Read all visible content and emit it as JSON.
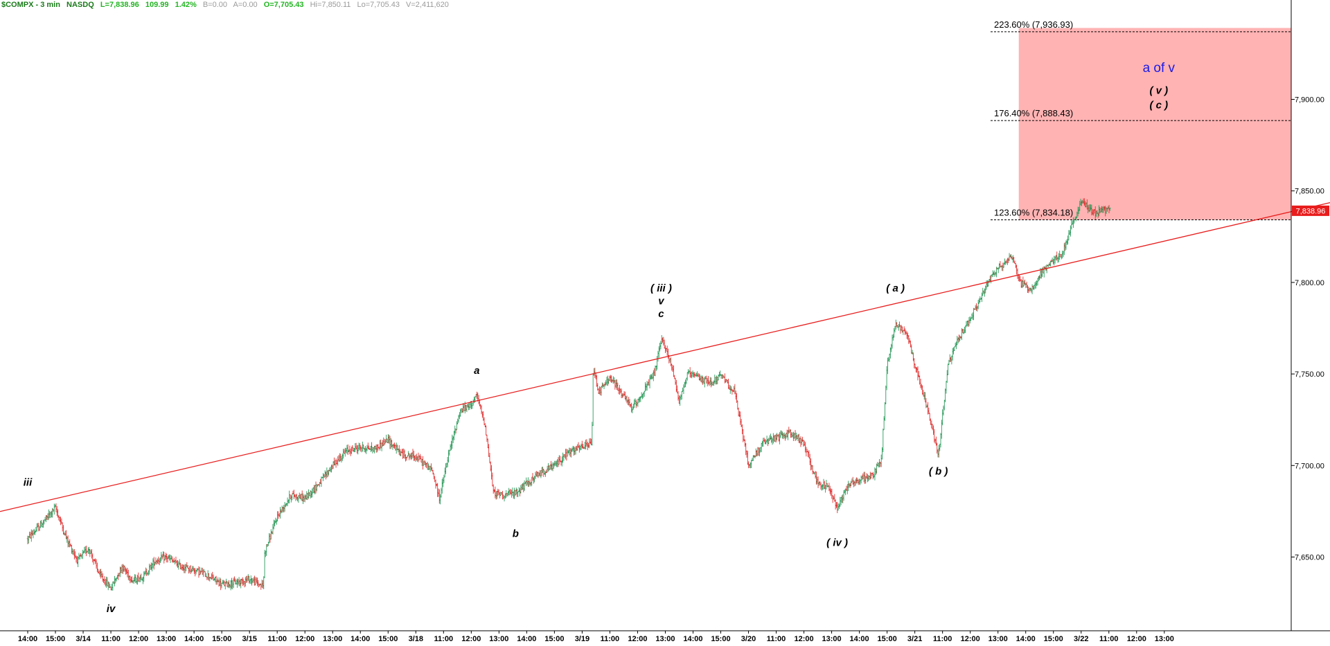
{
  "header": {
    "symbol": "$COMPX - 3 min",
    "exchange": "NASDQ",
    "last": "L=7,838.96",
    "change": "109.99",
    "change_pct": "1.42%",
    "bid": "B=0.00",
    "ask": "A=0.00",
    "open": "O=7,705.43",
    "high": "Hi=7,850.11",
    "low": "Lo=7,705.43",
    "volume": "V=2,411,620"
  },
  "colors": {
    "up_candle": "#2a9a5a",
    "down_candle": "#e03030",
    "trendline": "#e81c1c",
    "target_zone": "#ffb3b3",
    "price_tag": "#e81c1c",
    "wave_label_blue": "#1a1ae8",
    "axis": "#000000"
  },
  "chart_data": {
    "type": "candlestick",
    "title": "",
    "ylim": [
      7610,
      7945
    ],
    "y_ticks": [
      "7,650.00",
      "7,700.00",
      "7,750.00",
      "7,800.00",
      "7,850.00",
      "7,900.00"
    ],
    "y_tick_values": [
      7650,
      7700,
      7750,
      7800,
      7850,
      7900
    ],
    "x_ticks": [
      "14:00",
      "15:00",
      "3/14",
      "11:00",
      "12:00",
      "13:00",
      "14:00",
      "15:00",
      "3/15",
      "11:00",
      "12:00",
      "13:00",
      "14:00",
      "15:00",
      "3/18",
      "11:00",
      "12:00",
      "13:00",
      "14:00",
      "15:00",
      "3/19",
      "11:00",
      "12:00",
      "13:00",
      "14:00",
      "15:00",
      "3/20",
      "11:00",
      "12:00",
      "13:00",
      "14:00",
      "15:00",
      "3/21",
      "11:00",
      "12:00",
      "13:00",
      "14:00",
      "15:00",
      "3/22",
      "11:00",
      "12:00",
      "13:00"
    ],
    "last_price": "7,838.96",
    "last_price_value": 7838.96,
    "price_path": [
      [
        0,
        7660
      ],
      [
        0.5,
        7668
      ],
      [
        1.0,
        7677
      ],
      [
        1.4,
        7660
      ],
      [
        1.8,
        7648
      ],
      [
        2.2,
        7655
      ],
      [
        2.6,
        7640
      ],
      [
        3.0,
        7633
      ],
      [
        3.4,
        7645
      ],
      [
        3.8,
        7637
      ],
      [
        4.2,
        7640
      ],
      [
        4.6,
        7648
      ],
      [
        5.0,
        7650
      ],
      [
        5.5,
        7645
      ],
      [
        6.0,
        7643
      ],
      [
        6.5,
        7640
      ],
      [
        7.0,
        7635
      ],
      [
        7.5,
        7636
      ],
      [
        8.0,
        7638
      ],
      [
        8.5,
        7634
      ],
      [
        8.55,
        7653
      ],
      [
        9.0,
        7672
      ],
      [
        9.5,
        7684
      ],
      [
        10.0,
        7682
      ],
      [
        10.5,
        7690
      ],
      [
        11.0,
        7700
      ],
      [
        11.5,
        7708
      ],
      [
        12.0,
        7710
      ],
      [
        12.5,
        7709
      ],
      [
        13.0,
        7714
      ],
      [
        13.5,
        7706
      ],
      [
        14.0,
        7705
      ],
      [
        14.6,
        7697
      ],
      [
        14.85,
        7682
      ],
      [
        15.2,
        7707
      ],
      [
        15.6,
        7730
      ],
      [
        15.9,
        7732
      ],
      [
        16.2,
        7738
      ],
      [
        16.5,
        7722
      ],
      [
        16.8,
        7685
      ],
      [
        17.2,
        7684
      ],
      [
        17.6,
        7685
      ],
      [
        18.0,
        7690
      ],
      [
        18.5,
        7696
      ],
      [
        19.0,
        7700
      ],
      [
        19.5,
        7707
      ],
      [
        20.0,
        7710
      ],
      [
        20.35,
        7712
      ],
      [
        20.4,
        7754
      ],
      [
        20.6,
        7740
      ],
      [
        21.0,
        7748
      ],
      [
        21.4,
        7740
      ],
      [
        21.8,
        7731
      ],
      [
        22.2,
        7740
      ],
      [
        22.6,
        7750
      ],
      [
        22.85,
        7768
      ],
      [
        23.0,
        7765
      ],
      [
        23.3,
        7750
      ],
      [
        23.5,
        7735
      ],
      [
        23.8,
        7750
      ],
      [
        24.2,
        7748
      ],
      [
        24.6,
        7745
      ],
      [
        25.0,
        7749
      ],
      [
        25.5,
        7740
      ],
      [
        26.0,
        7700
      ],
      [
        26.5,
        7712
      ],
      [
        27.0,
        7715
      ],
      [
        27.5,
        7718
      ],
      [
        28.0,
        7712
      ],
      [
        28.5,
        7690
      ],
      [
        28.9,
        7688
      ],
      [
        29.2,
        7677
      ],
      [
        29.6,
        7690
      ],
      [
        30.0,
        7692
      ],
      [
        30.5,
        7695
      ],
      [
        30.8,
        7704
      ],
      [
        31.0,
        7755
      ],
      [
        31.3,
        7777
      ],
      [
        31.7,
        7773
      ],
      [
        32.1,
        7750
      ],
      [
        32.5,
        7728
      ],
      [
        32.85,
        7706
      ],
      [
        33.2,
        7755
      ],
      [
        33.6,
        7770
      ],
      [
        34.0,
        7780
      ],
      [
        34.4,
        7792
      ],
      [
        34.8,
        7805
      ],
      [
        35.2,
        7810
      ],
      [
        35.5,
        7815
      ],
      [
        35.8,
        7800
      ],
      [
        36.2,
        7796
      ],
      [
        36.6,
        7806
      ],
      [
        37.0,
        7812
      ],
      [
        37.3,
        7815
      ],
      [
        37.6,
        7828
      ],
      [
        38.0,
        7844
      ],
      [
        38.5,
        7838
      ],
      [
        38.9,
        7840
      ],
      [
        39.05,
        7838.96
      ]
    ],
    "trendline": {
      "x": [
        0,
        47.1
      ],
      "y": [
        7676,
        7844
      ]
    },
    "fib_levels": [
      {
        "label": "223.60% (7,936.93)",
        "value": 7936.93
      },
      {
        "label": "176.40% (7,888.43)",
        "value": 7888.43
      },
      {
        "label": "123.60% (7,834.18)",
        "value": 7834.18
      }
    ],
    "target_zone": {
      "x_start": 35.75,
      "y": [
        7834.18,
        7939
      ]
    },
    "wave_labels": [
      {
        "text": "iii",
        "x": 0,
        "value": 7689
      },
      {
        "text": "iv",
        "x": 3.0,
        "value": 7620
      },
      {
        "text": "a",
        "x": 16.2,
        "value": 7750
      },
      {
        "text": "b",
        "x": 17.6,
        "value": 7661
      },
      {
        "text": "( iii )",
        "x": 22.85,
        "value": 7795
      },
      {
        "text": "v",
        "x": 22.85,
        "value": 7788
      },
      {
        "text": "c",
        "x": 22.85,
        "value": 7781
      },
      {
        "text": "( iv )",
        "x": 29.2,
        "value": 7656
      },
      {
        "text": "( a )",
        "x": 31.3,
        "value": 7795
      },
      {
        "text": "( b )",
        "x": 32.85,
        "value": 7695
      },
      {
        "text": "a of v",
        "x": 40.8,
        "value": 7915
      },
      {
        "text": "( v )",
        "x": 40.8,
        "value": 7903
      },
      {
        "text": "( c )",
        "x": 40.8,
        "value": 7895
      }
    ]
  }
}
